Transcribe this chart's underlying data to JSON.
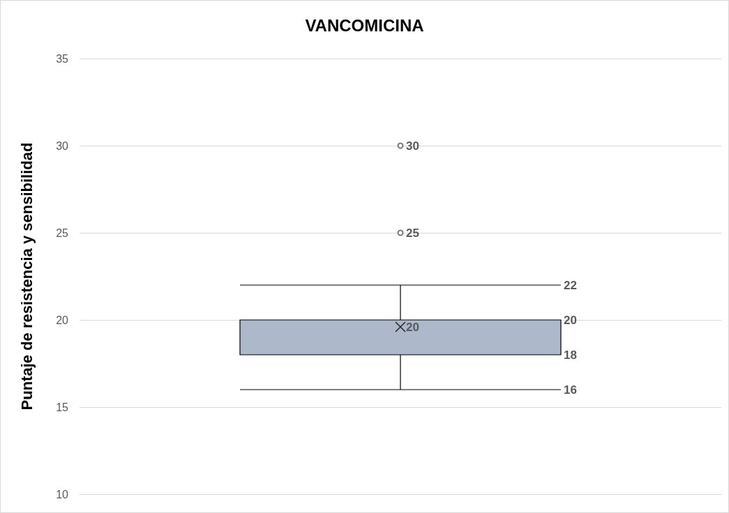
{
  "chart_data": {
    "type": "box",
    "title": "VANCOMICINA",
    "ylabel": "Puntaje de resistencia y sensibilidad",
    "categories": [
      null
    ],
    "series": [
      {
        "color": "#adb9ca",
        "boxes": [
          {
            "low": 16,
            "q1": 18,
            "median": 20,
            "q3": 20,
            "high": 22,
            "mean": 19.6,
            "outliers": [
              25,
              30
            ]
          }
        ]
      }
    ],
    "ylim": [
      10,
      35
    ],
    "yticks": [
      10,
      15,
      20,
      25,
      30,
      35
    ],
    "grid": "y",
    "annotations": [
      "30",
      "25",
      "22",
      "20",
      "20",
      "18",
      "16"
    ]
  }
}
